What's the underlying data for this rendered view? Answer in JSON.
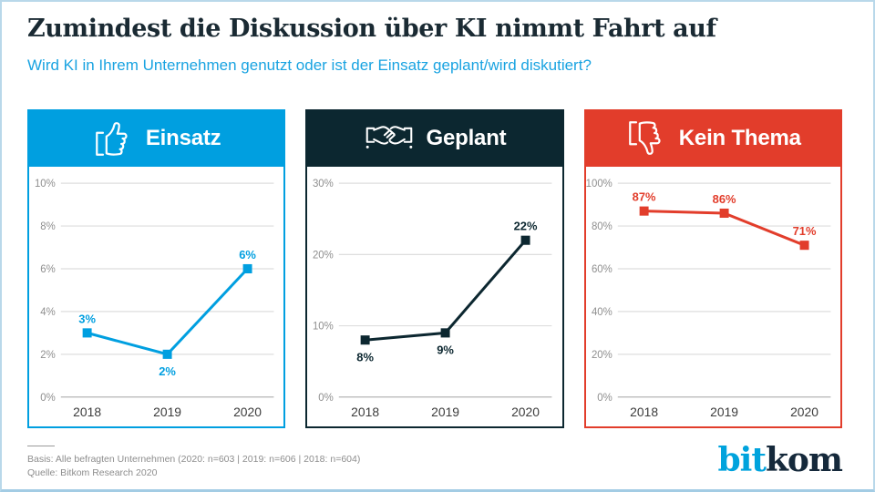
{
  "header": {
    "title": "Zumindest die Diskussion über KI nimmt Fahrt auf",
    "subtitle": "Wird KI in Ihrem Unternehmen genutzt oder ist der Einsatz geplant/wird diskutiert?"
  },
  "panels": [
    {
      "label": "Einsatz",
      "icon": "thumbs-up-icon",
      "color": "#009fe0"
    },
    {
      "label": "Geplant",
      "icon": "handshake-icon",
      "color": "#0c2730"
    },
    {
      "label": "Kein Thema",
      "icon": "thumbs-down-icon",
      "color": "#e23d2b"
    }
  ],
  "chart_data": [
    {
      "type": "line",
      "title": "Einsatz",
      "categories": [
        "2018",
        "2019",
        "2020"
      ],
      "values": [
        3,
        2,
        6
      ],
      "value_labels": [
        "3%",
        "2%",
        "6%"
      ],
      "label_positions": [
        "above",
        "below",
        "above"
      ],
      "yticks": [
        0,
        2,
        4,
        6,
        8,
        10
      ],
      "ylim": [
        0,
        10
      ],
      "tick_suffix": "%",
      "color": "#009fe0",
      "grid": true,
      "legend": "none"
    },
    {
      "type": "line",
      "title": "Geplant",
      "categories": [
        "2018",
        "2019",
        "2020"
      ],
      "values": [
        8,
        9,
        22
      ],
      "value_labels": [
        "8%",
        "9%",
        "22%"
      ],
      "label_positions": [
        "below",
        "below",
        "above"
      ],
      "yticks": [
        0,
        10,
        20,
        30
      ],
      "ylim": [
        0,
        30
      ],
      "tick_suffix": "%",
      "color": "#0c2730",
      "grid": true,
      "legend": "none"
    },
    {
      "type": "line",
      "title": "Kein Thema",
      "categories": [
        "2018",
        "2019",
        "2020"
      ],
      "values": [
        87,
        86,
        71
      ],
      "value_labels": [
        "87%",
        "86%",
        "71%"
      ],
      "label_positions": [
        "above",
        "above",
        "above"
      ],
      "yticks": [
        0,
        20,
        40,
        60,
        80,
        100
      ],
      "ylim": [
        0,
        100
      ],
      "tick_suffix": "%",
      "color": "#e23d2b",
      "grid": true,
      "legend": "none"
    }
  ],
  "chart_style": {
    "grid_color": "#dedede",
    "axis_color": "#b5b5b5",
    "tick_text_color": "#8f8f8f",
    "xlabel_color": "#3c3c3c"
  },
  "footer": {
    "basis": "Basis: Alle befragten Unternehmen (2020: n=603 | 2019: n=606 | 2018: n=604)",
    "quelle": "Quelle: Bitkom Research 2020",
    "logo": {
      "part1": "bit",
      "part2": "kom",
      "color1": "#00a3dd",
      "color2": "#15293b"
    }
  },
  "frame": {
    "border_color": "#b9d8ea"
  }
}
